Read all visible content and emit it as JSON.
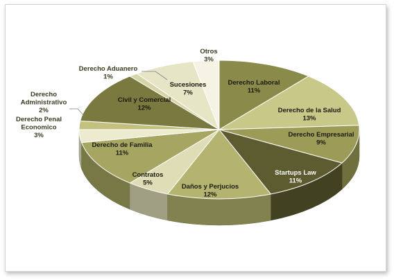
{
  "chart_data": {
    "type": "pie",
    "three_d": true,
    "title": "",
    "legend": "none",
    "slices": [
      {
        "label": "Derecho Laboral",
        "value": 11,
        "display": "11%",
        "color": "#8a8a4a",
        "text_color": "#1a1a10"
      },
      {
        "label": "Derecho de la Salud",
        "value": 13,
        "display": "13%",
        "color": "#c8c888",
        "text_color": "#1a1a10"
      },
      {
        "label": "Derecho Empresarial",
        "value": 9,
        "display": "9%",
        "color": "#9c9c58",
        "text_color": "#1a1a10"
      },
      {
        "label": "Startups Law",
        "value": 11,
        "display": "11%",
        "color": "#5c5c30",
        "text_color": "#ffffff"
      },
      {
        "label": "Daños y Perjucios",
        "value": 12,
        "display": "12%",
        "color": "#b4b470",
        "text_color": "#1a1a10"
      },
      {
        "label": "Contratos",
        "value": 5,
        "display": "5%",
        "color": "#deddb6",
        "text_color": "#1a1a10"
      },
      {
        "label": "Derecho de Familia",
        "value": 11,
        "display": "11%",
        "color": "#a6a662",
        "text_color": "#1a1a10"
      },
      {
        "label": "Derecho Penal Economico",
        "value": 3,
        "display": "3%",
        "color": "#ecebd0",
        "text_color": "#1a1a10"
      },
      {
        "label": "Derecho Administrativo",
        "value": 2,
        "display": "2%",
        "color": "#c2c27e",
        "text_color": "#1a1a10"
      },
      {
        "label": "Civil y Comercial",
        "value": 12,
        "display": "12%",
        "color": "#7a7a40",
        "text_color": "#1a1a10"
      },
      {
        "label": "Derecho Aduanero",
        "value": 1,
        "display": "1%",
        "color": "#d6d5a8",
        "text_color": "#1a1a10"
      },
      {
        "label": "Sucesiones",
        "value": 7,
        "display": "7%",
        "color": "#e6e5c6",
        "text_color": "#1a1a10"
      },
      {
        "label": "Otros",
        "value": 3,
        "display": "3%",
        "color": "#f4f3e4",
        "text_color": "#1a1a10"
      }
    ]
  }
}
